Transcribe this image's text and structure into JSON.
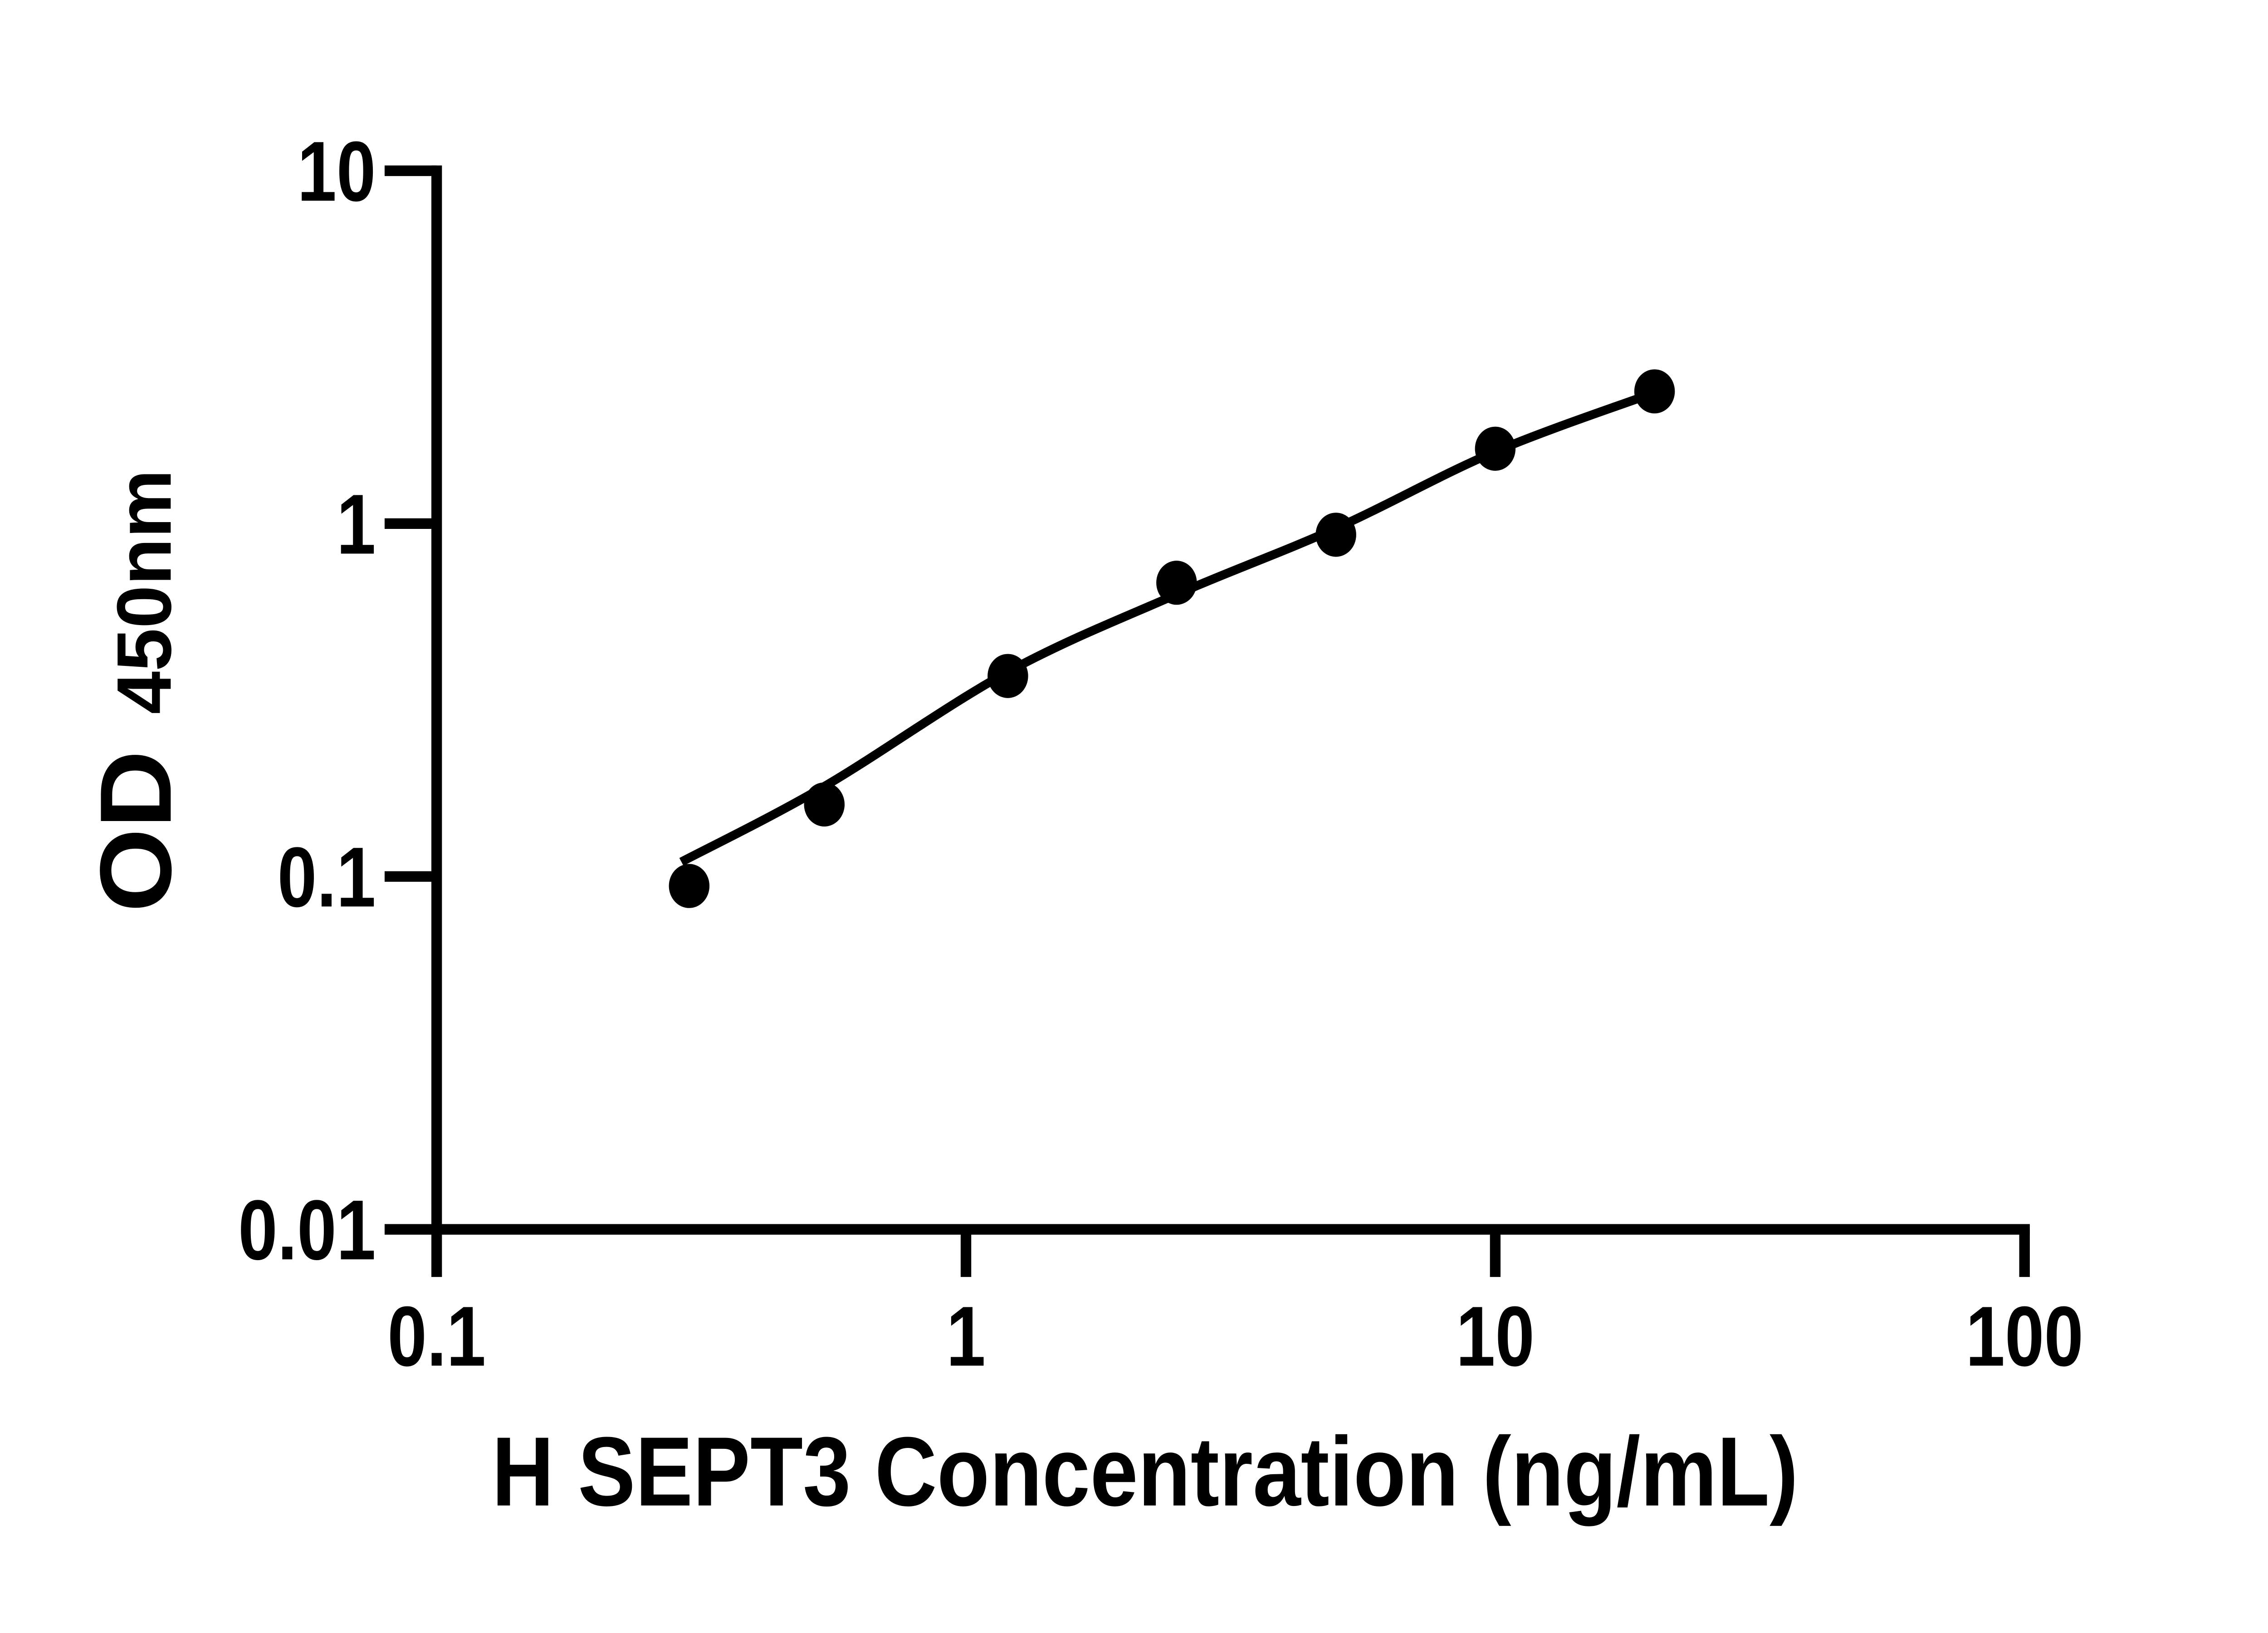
{
  "chart_data": {
    "type": "scatter",
    "title": "",
    "xlabel": "H SEPT3 Concentration (ng/mL)",
    "ylabel": "OD450nm",
    "ylabel_main": "OD",
    "ylabel_sub": "450nm",
    "x_scale": "log10",
    "y_scale": "log10",
    "xlim": [
      0.1,
      100
    ],
    "ylim": [
      0.01,
      10
    ],
    "x_ticks": [
      0.1,
      1,
      10,
      100
    ],
    "y_ticks": [
      0.01,
      0.1,
      1,
      10
    ],
    "x_tick_labels": [
      "0.1",
      "1",
      "10",
      "100"
    ],
    "y_tick_labels": [
      "0.01",
      "0.1",
      "1",
      "10"
    ],
    "grid": false,
    "legend": "none",
    "marker": "filled-circle",
    "series": [
      {
        "name": "standard-curve-points",
        "x": [
          0.3,
          0.54,
          1.2,
          2.5,
          5,
          10,
          20
        ],
        "y": [
          0.094,
          0.16,
          0.37,
          0.68,
          0.93,
          1.63,
          2.37
        ]
      }
    ],
    "fit_curve_points": [
      {
        "x": 0.29,
        "y": 0.11
      },
      {
        "x": 0.54,
        "y": 0.18
      },
      {
        "x": 1.2,
        "y": 0.38
      },
      {
        "x": 2.5,
        "y": 0.63
      },
      {
        "x": 5,
        "y": 0.97
      },
      {
        "x": 10,
        "y": 1.6
      },
      {
        "x": 20,
        "y": 2.35
      }
    ],
    "colors": {
      "axis": "#000000",
      "marker": "#000000",
      "curve": "#000000",
      "background": "#ffffff",
      "text": "#000000"
    }
  }
}
